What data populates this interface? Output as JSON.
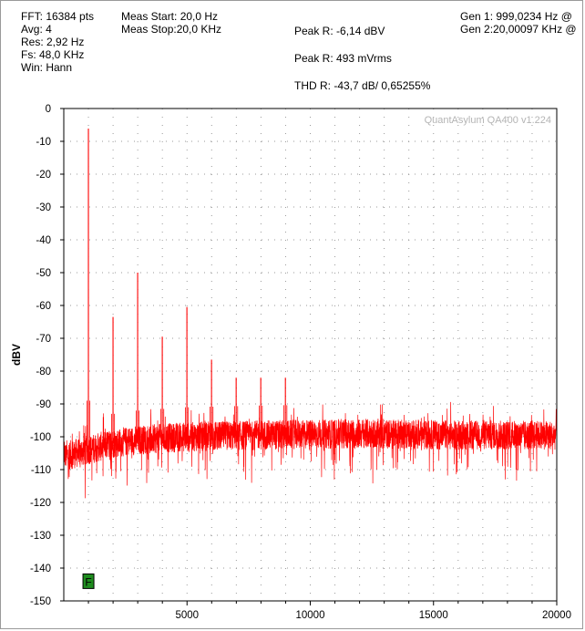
{
  "header": {
    "col1": [
      "FFT: 16384 pts",
      "Avg: 4",
      "Res: 2,92 Hz",
      "Fs: 48,0 KHz",
      "Win: Hann"
    ],
    "meas_start": "Meas Start: 20,0 Hz",
    "meas_stop": "Meas Stop:20,0 KHz",
    "peak_dbv": "Peak R: -6,14 dBV",
    "peak_mv": "Peak R: 493 mVrms",
    "thd": "THD R: -43,7 dB/ 0,65255%",
    "gen1": "Gen 1: 999,0234 Hz @",
    "gen2": "Gen 2:20,00097 KHz @"
  },
  "watermark": "QuantAsylum QA400 v1.224",
  "marker_label": "F",
  "colors": {
    "trace": "#ff0000",
    "marker": "#1e8c1e",
    "grid": "#9a9a9a"
  },
  "chart_data": {
    "type": "line",
    "ylabel": "dBV",
    "xlabel": "",
    "xlim": [
      0,
      20000
    ],
    "ylim": [
      -150,
      0
    ],
    "xticks": [
      5000,
      10000,
      15000,
      20000
    ],
    "yticks": [
      0,
      -10,
      -20,
      -30,
      -40,
      -50,
      -60,
      -70,
      -80,
      -90,
      -100,
      -110,
      -120,
      -130,
      -140,
      -150
    ],
    "grid": true,
    "noise_floor": {
      "x": [
        20,
        1000,
        2000,
        3000,
        4000,
        5000,
        8000,
        12000,
        16000,
        20000
      ],
      "y": [
        -106,
        -104,
        -102,
        -101,
        -100.5,
        -100,
        -99.5,
        -99,
        -99.5,
        -99.5
      ]
    },
    "harmonics": [
      {
        "x": 999,
        "y": -6.1
      },
      {
        "x": 1998,
        "y": -63.5
      },
      {
        "x": 2997,
        "y": -50
      },
      {
        "x": 3996,
        "y": -69.5
      },
      {
        "x": 4995,
        "y": -60.5
      },
      {
        "x": 5994,
        "y": -76.5
      },
      {
        "x": 6993,
        "y": -82
      },
      {
        "x": 7992,
        "y": -82
      },
      {
        "x": 8991,
        "y": -82
      }
    ],
    "marker": {
      "x": 1000,
      "y": -144
    }
  }
}
